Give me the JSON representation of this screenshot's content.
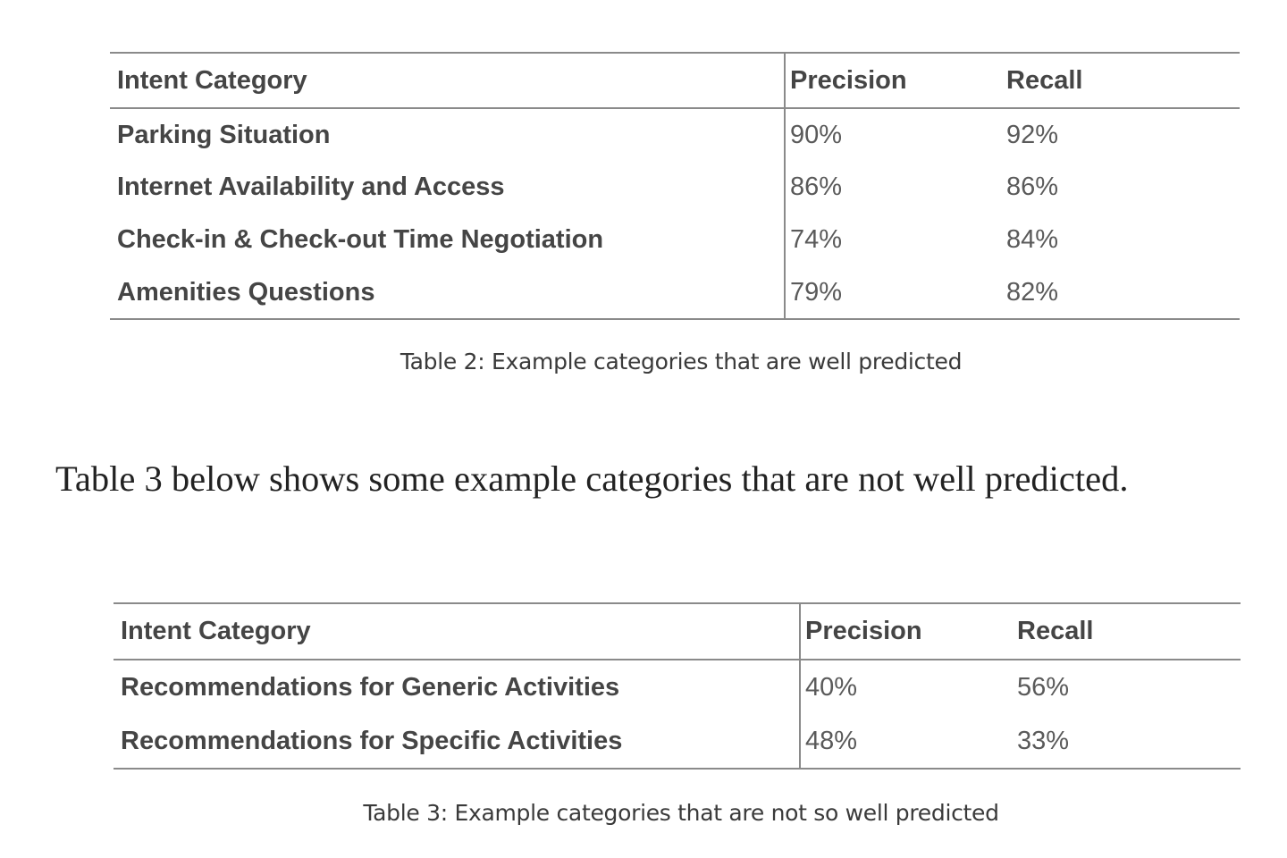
{
  "table2": {
    "headers": [
      "Intent Category",
      "Precision",
      "Recall"
    ],
    "rows": [
      {
        "category": "Parking Situation",
        "precision": "90%",
        "recall": "92%"
      },
      {
        "category": "Internet Availability and Access",
        "precision": "86%",
        "recall": "86%"
      },
      {
        "category": "Check-in & Check-out Time Negotiation",
        "precision": "74%",
        "recall": "84%"
      },
      {
        "category": "Amenities Questions",
        "precision": "79%",
        "recall": "82%"
      }
    ],
    "caption": "Table 2: Example categories that are well predicted"
  },
  "paragraph": "Table 3 below shows some example categories that are not well predicted.",
  "table3": {
    "headers": [
      "Intent Category",
      "Precision",
      "Recall"
    ],
    "rows": [
      {
        "category": "Recommendations for Generic Activities",
        "precision": "40%",
        "recall": "56%"
      },
      {
        "category": "Recommendations for Specific Activities",
        "precision": "48%",
        "recall": "33%"
      }
    ],
    "caption": "Table 3: Example categories that are not so well predicted"
  }
}
